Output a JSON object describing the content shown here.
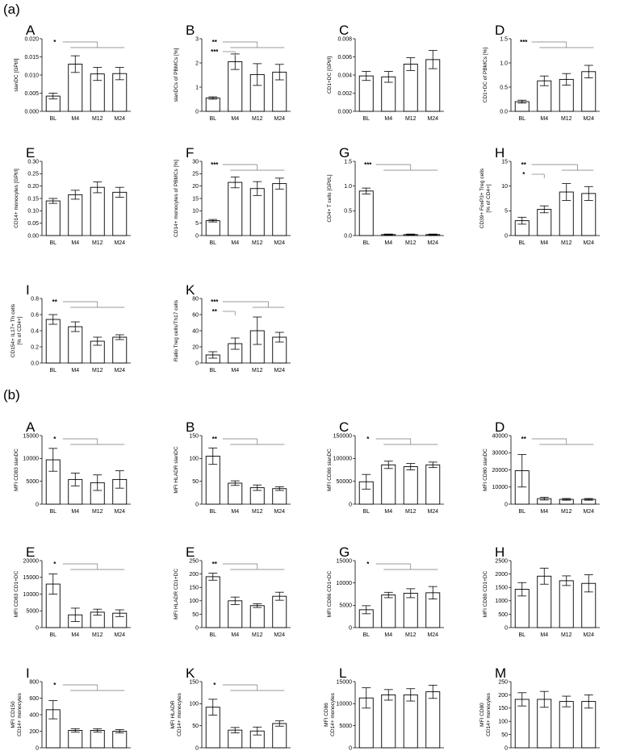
{
  "sections": [
    {
      "label": "(a)",
      "panels": [
        {
          "letter": "A",
          "ylabel": [
            "slanDC [GPt/l]"
          ],
          "ylim": [
            0,
            0.02
          ],
          "yticks": [
            "0.000",
            "0.005",
            "0.010",
            "0.015",
            "0.020"
          ],
          "categories": [
            "BL",
            "M4",
            "M12",
            "M24"
          ],
          "values": [
            0.0042,
            0.013,
            0.0103,
            0.0104
          ],
          "err": [
            0.0008,
            0.0023,
            0.0018,
            0.0017
          ],
          "sig": [
            {
              "text": "*",
              "from": 0,
              "to": [
                1,
                2,
                3
              ]
            }
          ]
        },
        {
          "letter": "B",
          "ylabel": [
            "slanDCs of PBMCs [%]"
          ],
          "ylim": [
            0,
            3
          ],
          "yticks": [
            "0",
            "1",
            "2",
            "3"
          ],
          "categories": [
            "BL",
            "M4",
            "M12",
            "M24"
          ],
          "values": [
            0.55,
            2.05,
            1.52,
            1.62
          ],
          "err": [
            0.05,
            0.32,
            0.45,
            0.32
          ],
          "sig": [
            {
              "text": "**",
              "from": 0,
              "to": [
                1,
                2,
                3
              ]
            },
            {
              "text": "***",
              "from": 0,
              "to": [
                1
              ]
            }
          ]
        },
        {
          "letter": "C",
          "ylabel": [
            "CD1+DC [GPt/l]"
          ],
          "ylim": [
            0,
            0.008
          ],
          "yticks": [
            "0.000",
            "0.002",
            "0.004",
            "0.006",
            "0.008"
          ],
          "categories": [
            "BL",
            "M4",
            "M12",
            "M24"
          ],
          "values": [
            0.0039,
            0.0038,
            0.0052,
            0.0057
          ],
          "err": [
            0.0005,
            0.0006,
            0.0007,
            0.001
          ],
          "sig": []
        },
        {
          "letter": "D",
          "ylabel": [
            "CD1+DC of PBMCs [%]"
          ],
          "ylim": [
            0,
            1.5
          ],
          "yticks": [
            "0.0",
            "0.5",
            "1.0",
            "1.5"
          ],
          "categories": [
            "BL",
            "M4",
            "M12",
            "M24"
          ],
          "values": [
            0.2,
            0.63,
            0.66,
            0.82
          ],
          "err": [
            0.03,
            0.1,
            0.12,
            0.13
          ],
          "sig": [
            {
              "text": "***",
              "from": 0,
              "to": [
                1,
                2,
                3
              ]
            }
          ]
        },
        {
          "letter": "E",
          "ylabel": [
            "CD14+ monocytes [GPt/l]"
          ],
          "ylim": [
            0,
            0.3
          ],
          "yticks": [
            "0.00",
            "0.05",
            "0.10",
            "0.15",
            "0.20",
            "0.25",
            "0.30"
          ],
          "categories": [
            "BL",
            "M4",
            "M12",
            "M24"
          ],
          "values": [
            0.14,
            0.165,
            0.195,
            0.175
          ],
          "err": [
            0.01,
            0.018,
            0.022,
            0.02
          ],
          "sig": []
        },
        {
          "letter": "F",
          "ylabel": [
            "CD14+ monocytes of PBMCs [%]"
          ],
          "ylim": [
            0,
            30
          ],
          "yticks": [
            "0",
            "5",
            "10",
            "15",
            "20",
            "25",
            "30"
          ],
          "categories": [
            "BL",
            "M4",
            "M12",
            "M24"
          ],
          "values": [
            6,
            21.5,
            19,
            21
          ],
          "err": [
            0.5,
            2.2,
            2.8,
            2.2
          ],
          "sig": [
            {
              "text": "***",
              "from": 0,
              "to": [
                1,
                2,
                3
              ]
            }
          ]
        },
        {
          "letter": "G",
          "ylabel": [
            "CD4+ T cells [GPt/L]"
          ],
          "ylim": [
            0,
            1.5
          ],
          "yticks": [
            "0.0",
            "0.5",
            "1.0",
            "1.5"
          ],
          "categories": [
            "BL",
            "M4",
            "M12",
            "M24"
          ],
          "values": [
            0.9,
            0.02,
            0.02,
            0.02
          ],
          "err": [
            0.06,
            0.01,
            0.01,
            0.01
          ],
          "sig": [
            {
              "text": "***",
              "from": 0,
              "to": [
                1,
                2,
                3
              ]
            }
          ]
        },
        {
          "letter": "H",
          "ylabel": [
            "CD39+ FoxP3+ Treg cells",
            "[% of CD4+]"
          ],
          "ylim": [
            0,
            15
          ],
          "yticks": [
            "0",
            "5",
            "10",
            "15"
          ],
          "categories": [
            "BL",
            "M4",
            "M12",
            "M24"
          ],
          "values": [
            3,
            5.3,
            8.8,
            8.5
          ],
          "err": [
            0.7,
            0.7,
            1.7,
            1.4
          ],
          "sig": [
            {
              "text": "**",
              "from": 0,
              "to": [
                2,
                3
              ]
            },
            {
              "text": "*",
              "from": 0,
              "to": [
                1
              ]
            }
          ]
        },
        {
          "letter": "I",
          "ylabel": [
            "CD154+ IL17+ Th cells",
            "[% of CD4+]"
          ],
          "ylim": [
            0,
            0.8
          ],
          "yticks": [
            "0.0",
            "0.2",
            "0.4",
            "0.6",
            "0.8"
          ],
          "categories": [
            "BL",
            "M4",
            "M12",
            "M24"
          ],
          "values": [
            0.54,
            0.45,
            0.27,
            0.32
          ],
          "err": [
            0.06,
            0.06,
            0.05,
            0.03
          ],
          "sig": [
            {
              "text": "**",
              "from": 0,
              "to": [
                1,
                2,
                3
              ]
            }
          ]
        },
        {
          "letter": "K",
          "ylabel": [
            "Ratio Treg cells/Th17 cells"
          ],
          "ylim": [
            0,
            80
          ],
          "yticks": [
            "0",
            "20",
            "40",
            "60",
            "80"
          ],
          "categories": [
            "BL",
            "M4",
            "M12",
            "M24"
          ],
          "values": [
            10,
            24,
            40,
            32
          ],
          "err": [
            4,
            7,
            17,
            6
          ],
          "sig": [
            {
              "text": "***",
              "from": 0,
              "to": [
                2,
                3
              ]
            },
            {
              "text": "**",
              "from": 0,
              "to": [
                1
              ]
            }
          ]
        }
      ]
    },
    {
      "label": "(b)",
      "panels": [
        {
          "letter": "A",
          "ylabel": [
            "MFI CD83 slanDC"
          ],
          "ylim": [
            0,
            15000
          ],
          "yticks": [
            "0",
            "5000",
            "10000",
            "15000"
          ],
          "categories": [
            "BL",
            "M4",
            "M12",
            "M24"
          ],
          "values": [
            9700,
            5400,
            4700,
            5400
          ],
          "err": [
            2500,
            1400,
            1700,
            1900
          ],
          "sig": [
            {
              "text": "*",
              "from": 0,
              "to": [
                1,
                2,
                3
              ]
            }
          ]
        },
        {
          "letter": "B",
          "ylabel": [
            "MFI HLADR slanDC"
          ],
          "ylim": [
            0,
            150
          ],
          "yticks": [
            "0",
            "50",
            "100",
            "150"
          ],
          "categories": [
            "BL",
            "M4",
            "M12",
            "M24"
          ],
          "values": [
            105,
            46,
            36,
            34
          ],
          "err": [
            18,
            5,
            6,
            4
          ],
          "sig": [
            {
              "text": "**",
              "from": 0,
              "to": [
                1,
                2,
                3
              ]
            }
          ]
        },
        {
          "letter": "C",
          "ylabel": [
            "MFI CD86 slanDC"
          ],
          "ylim": [
            0,
            150000
          ],
          "yticks": [
            "0",
            "50000",
            "100000",
            "150000"
          ],
          "categories": [
            "BL",
            "M4",
            "M12",
            "M24"
          ],
          "values": [
            49000,
            86000,
            82000,
            86000
          ],
          "err": [
            16000,
            8000,
            7000,
            6000
          ],
          "sig": [
            {
              "text": "*",
              "from": 0,
              "to": [
                1,
                2,
                3
              ]
            }
          ]
        },
        {
          "letter": "D",
          "ylabel": [
            "MFI CD80 slanDC"
          ],
          "ylim": [
            0,
            40000
          ],
          "yticks": [
            "0",
            "10000",
            "20000",
            "30000",
            "40000"
          ],
          "categories": [
            "BL",
            "M4",
            "M12",
            "M24"
          ],
          "values": [
            19500,
            3200,
            2800,
            2800
          ],
          "err": [
            9500,
            800,
            500,
            500
          ],
          "sig": [
            {
              "text": "**",
              "from": 0,
              "to": [
                1,
                2,
                3
              ]
            }
          ]
        },
        {
          "letter": "E",
          "ylabel": [
            "MFI CD83 CD1+DC"
          ],
          "ylim": [
            0,
            20000
          ],
          "yticks": [
            "0",
            "5000",
            "10000",
            "15000",
            "20000"
          ],
          "categories": [
            "BL",
            "M4",
            "M12",
            "M24"
          ],
          "values": [
            13000,
            3800,
            4600,
            4300
          ],
          "err": [
            3000,
            2000,
            900,
            1000
          ],
          "sig": [
            {
              "text": "*",
              "from": 0,
              "to": [
                1,
                2,
                3
              ]
            }
          ]
        },
        {
          "letter": "E",
          "ylabel": [
            "MFI HLADR CD1+DC"
          ],
          "ylim": [
            0,
            250
          ],
          "yticks": [
            "0",
            "50",
            "100",
            "150",
            "200",
            "250"
          ],
          "categories": [
            "BL",
            "M4",
            "M12",
            "M24"
          ],
          "values": [
            190,
            100,
            82,
            117
          ],
          "err": [
            13,
            14,
            7,
            15
          ],
          "sig": [
            {
              "text": "**",
              "from": 0,
              "to": [
                1,
                2,
                3
              ]
            }
          ]
        },
        {
          "letter": "G",
          "ylabel": [
            "MFI CD86 CD1+DC"
          ],
          "ylim": [
            0,
            15000
          ],
          "yticks": [
            "0",
            "5000",
            "10000",
            "15000"
          ],
          "categories": [
            "BL",
            "M4",
            "M12",
            "M24"
          ],
          "values": [
            4000,
            7300,
            7700,
            7800
          ],
          "err": [
            900,
            600,
            1000,
            1400
          ],
          "sig": [
            {
              "text": "*",
              "from": 0,
              "to": [
                1,
                2,
                3
              ]
            }
          ]
        },
        {
          "letter": "H",
          "ylabel": [
            "MFI CD80 CD1+DC"
          ],
          "ylim": [
            0,
            2500
          ],
          "yticks": [
            "0",
            "500",
            "1000",
            "1500",
            "2000",
            "2500"
          ],
          "categories": [
            "BL",
            "M4",
            "M12",
            "M24"
          ],
          "values": [
            1430,
            1920,
            1750,
            1650
          ],
          "err": [
            250,
            300,
            180,
            320
          ],
          "sig": []
        },
        {
          "letter": "I",
          "ylabel": [
            "MFI CD150",
            "CD14+ monocytes"
          ],
          "ylim": [
            0,
            800
          ],
          "yticks": [
            "0",
            "200",
            "400",
            "600",
            "800"
          ],
          "categories": [
            "BL",
            "M4",
            "M12",
            "M24"
          ],
          "values": [
            460,
            210,
            210,
            200
          ],
          "err": [
            110,
            20,
            20,
            20
          ],
          "sig": [
            {
              "text": "*",
              "from": 0,
              "to": [
                1,
                2,
                3
              ]
            }
          ]
        },
        {
          "letter": "K",
          "ylabel": [
            "MFI HLADR",
            "CD14+ monocytes"
          ],
          "ylim": [
            0,
            150
          ],
          "yticks": [
            "0",
            "50",
            "100",
            "150"
          ],
          "categories": [
            "BL",
            "M4",
            "M12",
            "M24"
          ],
          "values": [
            92,
            40,
            38,
            55
          ],
          "err": [
            18,
            6,
            9,
            6
          ],
          "sig": [
            {
              "text": "*",
              "from": 0,
              "to": [
                1,
                2,
                3
              ]
            }
          ]
        },
        {
          "letter": "L",
          "ylabel": [
            "MFI CD86",
            "CD14+ monocytes"
          ],
          "ylim": [
            0,
            15000
          ],
          "yticks": [
            "0",
            "5000",
            "10000",
            "15000"
          ],
          "categories": [
            "BL",
            "M4",
            "M12",
            "M24"
          ],
          "values": [
            11300,
            12000,
            12000,
            12700
          ],
          "err": [
            2300,
            1200,
            1400,
            1500
          ],
          "sig": []
        },
        {
          "letter": "M",
          "ylabel": [
            "MFI CD80",
            "CD14+ monocytes"
          ],
          "ylim": [
            0,
            250
          ],
          "yticks": [
            "0",
            "50",
            "100",
            "150",
            "200",
            "250"
          ],
          "categories": [
            "BL",
            "M4",
            "M12",
            "M24"
          ],
          "values": [
            183,
            183,
            175,
            175
          ],
          "err": [
            25,
            30,
            20,
            25
          ],
          "sig": []
        }
      ]
    }
  ]
}
